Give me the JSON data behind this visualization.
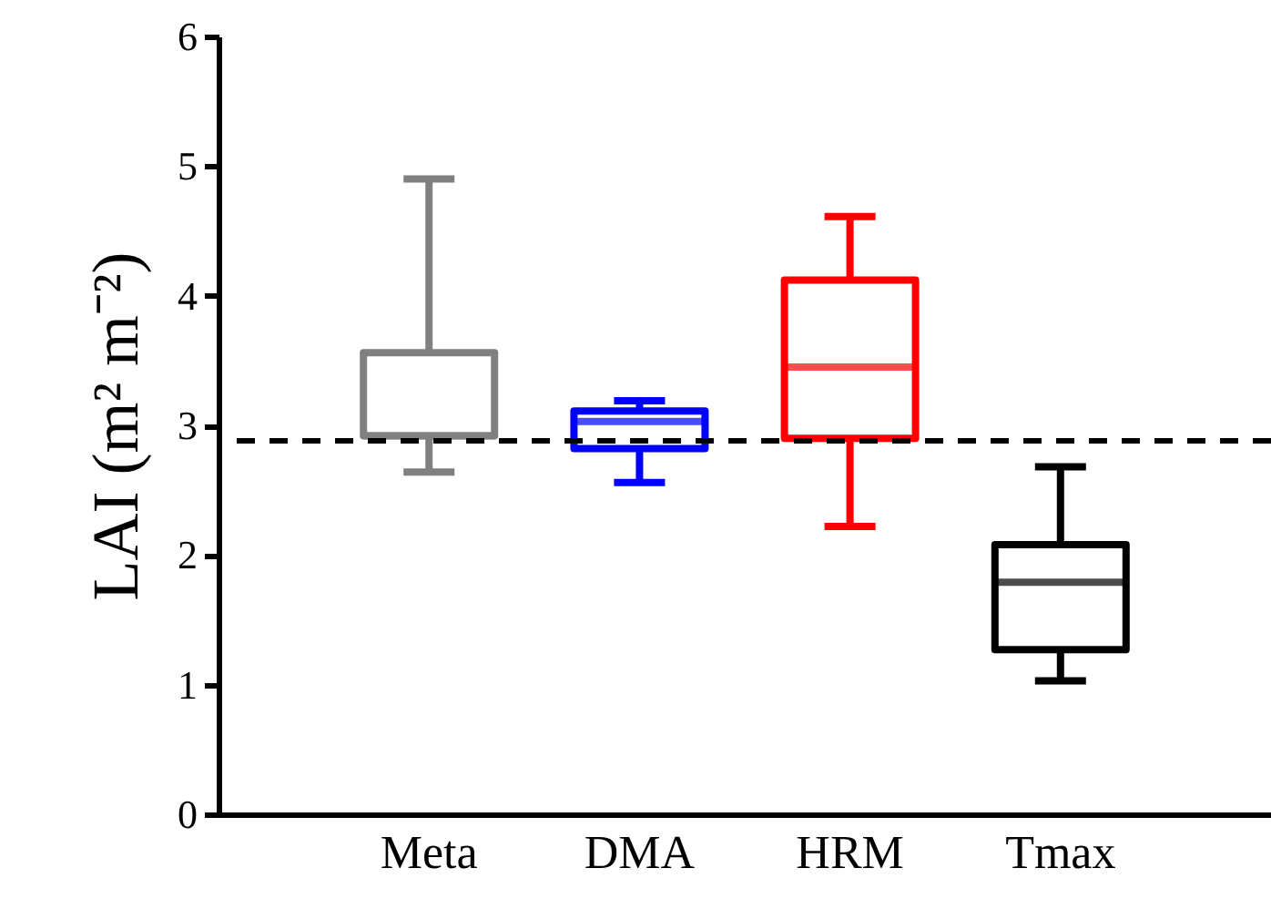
{
  "chart_data": {
    "type": "box",
    "ylabel": "LAI (m² m⁻²)",
    "categories": [
      "Meta",
      "DMA",
      "HRM",
      "Tmax"
    ],
    "colors": [
      "#808080",
      "#0000ff",
      "#ff0000",
      "#000000"
    ],
    "boxes": [
      {
        "low": 2.64,
        "q1": 2.92,
        "median": 2.92,
        "q3": 3.56,
        "high": 4.9
      },
      {
        "low": 2.56,
        "q1": 2.82,
        "median": 3.03,
        "q3": 3.11,
        "high": 3.19
      },
      {
        "low": 2.22,
        "q1": 2.9,
        "median": 3.45,
        "q3": 4.12,
        "high": 4.61
      },
      {
        "low": 1.03,
        "q1": 1.27,
        "median": 1.79,
        "q3": 2.08,
        "high": 2.68
      }
    ],
    "ylim": [
      0,
      6
    ],
    "yticks": [
      0,
      1,
      2,
      3,
      4,
      5,
      6
    ],
    "grid": false,
    "ref_lines": [
      {
        "axis": "y",
        "value": 2.88,
        "color": "#000000",
        "line_style": "dashed"
      }
    ]
  }
}
